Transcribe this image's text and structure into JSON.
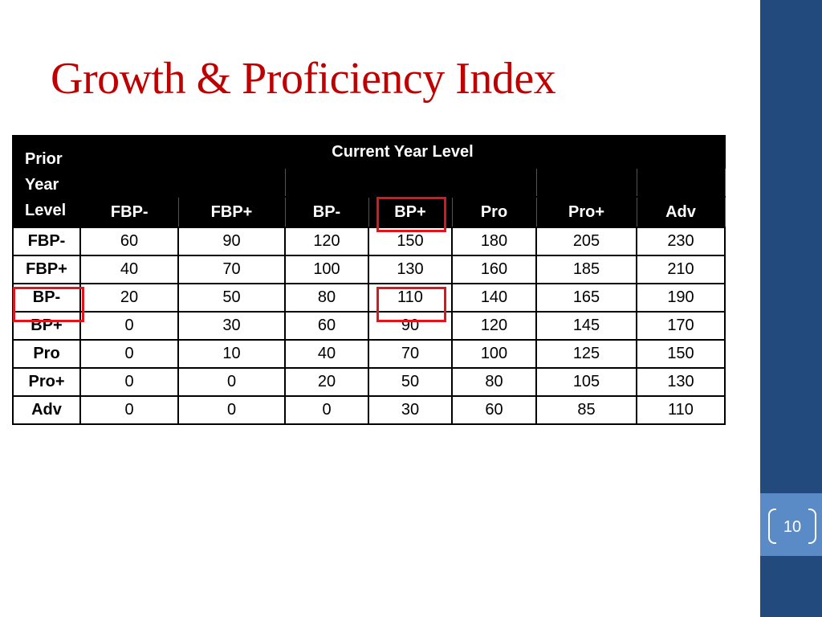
{
  "slide": {
    "title": "Growth & Proficiency Index",
    "page_number": "10"
  },
  "table": {
    "corner_header_lines": [
      "Prior",
      "Year",
      "Level"
    ],
    "group_header": "Current Year Level",
    "columns": [
      "FBP-",
      "FBP+",
      "BP-",
      "BP+",
      "Pro",
      "Pro+",
      "Adv"
    ],
    "rows": [
      {
        "label": "FBP-",
        "values": [
          "60",
          "90",
          "120",
          "150",
          "180",
          "205",
          "230"
        ]
      },
      {
        "label": "FBP+",
        "values": [
          "40",
          "70",
          "100",
          "130",
          "160",
          "185",
          "210"
        ]
      },
      {
        "label": "BP-",
        "values": [
          "20",
          "50",
          "80",
          "110",
          "140",
          "165",
          "190"
        ]
      },
      {
        "label": "BP+",
        "values": [
          "0",
          "30",
          "60",
          "90",
          "120",
          "145",
          "170"
        ]
      },
      {
        "label": "Pro",
        "values": [
          "0",
          "10",
          "40",
          "70",
          "100",
          "125",
          "150"
        ]
      },
      {
        "label": "Pro+",
        "values": [
          "0",
          "0",
          "20",
          "50",
          "80",
          "105",
          "130"
        ]
      },
      {
        "label": "Adv",
        "values": [
          "0",
          "0",
          "0",
          "30",
          "60",
          "85",
          "110"
        ]
      }
    ],
    "highlighted": {
      "column": "BP+",
      "row": "BP-",
      "cell_value": "110",
      "color": "#e0141b"
    }
  },
  "colors": {
    "title": "#c00000",
    "sidebar": "#234a7c",
    "page_box": "#5b8bc7"
  }
}
